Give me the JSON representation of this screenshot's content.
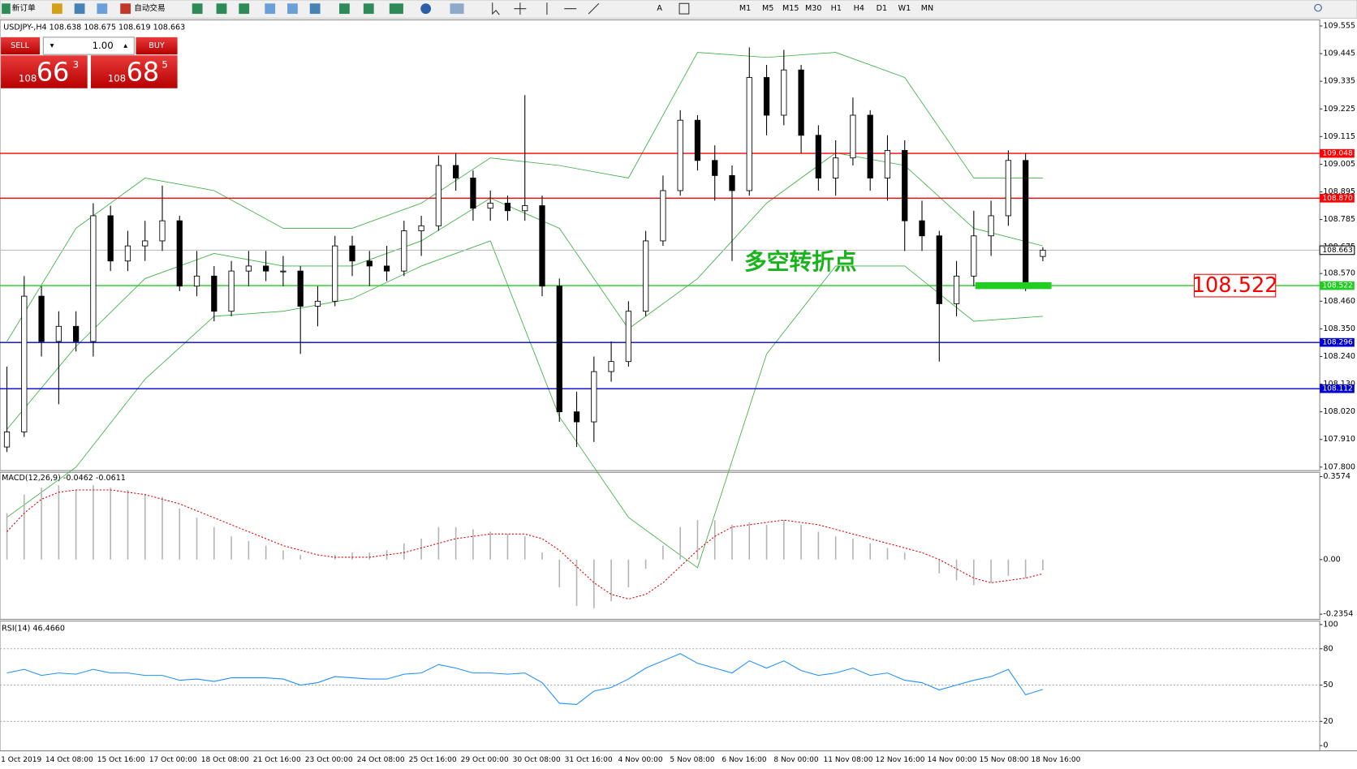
{
  "toolbar": {
    "new_order": "新订单",
    "auto_trading": "自动交易",
    "timeframes": [
      "M1",
      "M5",
      "M15",
      "M30",
      "H1",
      "H4",
      "D1",
      "W1",
      "MN"
    ]
  },
  "trade_panel": {
    "sell": "SELL",
    "buy": "BUY",
    "lots": "1.00",
    "bid": {
      "big": "108",
      "main": "66",
      "small": "3"
    },
    "ask": {
      "big": "108",
      "main": "68",
      "small": "5"
    }
  },
  "chart_data": [
    {
      "type": "candlestick",
      "title": "USDJPY-,H4  108.638 108.675 108.619 108.663",
      "open": [
        107.88,
        107.94,
        108.48,
        108.3,
        108.36,
        108.3,
        108.8,
        108.62,
        108.68,
        108.7,
        108.78,
        108.52,
        108.56,
        108.42,
        108.58,
        108.6,
        108.58,
        108.58,
        108.44,
        108.46,
        108.68,
        108.62,
        108.6,
        108.58,
        108.74,
        108.76,
        109.0,
        108.95,
        108.83,
        108.85,
        108.82,
        108.84,
        108.52,
        108.02,
        107.98,
        108.18,
        108.22,
        108.42,
        108.7,
        108.9,
        109.18,
        109.02,
        108.96,
        108.9,
        109.35,
        109.2,
        109.38,
        109.12,
        108.95,
        109.03,
        109.2,
        108.95,
        109.06,
        108.78,
        108.72,
        108.45,
        108.56,
        108.72,
        108.8,
        109.02,
        108.638
      ],
      "high": [
        108.2,
        108.56,
        108.52,
        108.42,
        108.42,
        108.85,
        108.84,
        108.74,
        108.78,
        108.92,
        108.8,
        108.66,
        108.6,
        108.62,
        108.66,
        108.66,
        108.64,
        108.6,
        108.52,
        108.72,
        108.72,
        108.66,
        108.68,
        108.78,
        108.8,
        109.04,
        109.05,
        108.98,
        108.9,
        108.88,
        109.28,
        108.88,
        108.55,
        108.1,
        108.24,
        108.3,
        108.46,
        108.74,
        108.96,
        109.22,
        109.2,
        109.08,
        109.0,
        109.47,
        109.4,
        109.46,
        109.4,
        109.16,
        109.1,
        109.27,
        109.22,
        109.12,
        109.1,
        108.86,
        108.74,
        108.62,
        108.82,
        108.86,
        109.06,
        109.05,
        108.675
      ],
      "low": [
        107.86,
        107.92,
        108.24,
        108.05,
        108.26,
        108.24,
        108.58,
        108.58,
        108.62,
        108.66,
        108.5,
        108.48,
        108.38,
        108.4,
        108.52,
        108.54,
        108.52,
        108.25,
        108.36,
        108.44,
        108.56,
        108.52,
        108.54,
        108.56,
        108.64,
        108.74,
        108.9,
        108.78,
        108.78,
        108.78,
        108.78,
        108.48,
        107.98,
        107.88,
        107.9,
        108.14,
        108.2,
        108.4,
        108.68,
        108.88,
        108.98,
        108.86,
        108.62,
        108.88,
        109.12,
        109.16,
        109.05,
        108.9,
        108.88,
        109.0,
        108.9,
        108.86,
        108.66,
        108.66,
        108.22,
        108.4,
        108.52,
        108.64,
        108.76,
        108.5,
        108.619
      ],
      "close": [
        107.94,
        108.48,
        108.3,
        108.36,
        108.3,
        108.8,
        108.62,
        108.68,
        108.7,
        108.78,
        108.52,
        108.56,
        108.42,
        108.58,
        108.6,
        108.58,
        108.58,
        108.44,
        108.46,
        108.68,
        108.62,
        108.6,
        108.58,
        108.74,
        108.76,
        109.0,
        108.95,
        108.83,
        108.85,
        108.82,
        108.84,
        108.52,
        108.02,
        107.98,
        108.18,
        108.22,
        108.42,
        108.7,
        108.9,
        109.18,
        109.02,
        108.96,
        108.9,
        109.35,
        109.2,
        109.38,
        109.12,
        108.95,
        109.03,
        109.2,
        108.95,
        109.06,
        108.78,
        108.72,
        108.45,
        108.56,
        108.72,
        108.8,
        109.02,
        108.52,
        108.663
      ],
      "bollinger": {
        "color": "#3cb043",
        "x": [
          0,
          4,
          8,
          12,
          16,
          20,
          24,
          28,
          32,
          36,
          40,
          44,
          48,
          52,
          56,
          60
        ],
        "upper": [
          108.3,
          108.75,
          108.95,
          108.9,
          108.75,
          108.75,
          108.85,
          109.03,
          109.0,
          108.95,
          109.45,
          109.43,
          109.45,
          109.35,
          108.95,
          108.95
        ],
        "middle": [
          107.95,
          108.28,
          108.55,
          108.65,
          108.6,
          108.6,
          108.7,
          108.87,
          108.75,
          108.35,
          108.55,
          108.85,
          109.05,
          109.0,
          108.75,
          108.68
        ],
        "lower": [
          107.6,
          107.8,
          108.15,
          108.4,
          108.42,
          108.47,
          108.6,
          108.7,
          108.0,
          107.6,
          107.4,
          108.25,
          108.6,
          108.6,
          108.38,
          108.4
        ]
      },
      "levels": [
        {
          "value": 109.048,
          "label": "109.048",
          "color": "#ff0000"
        },
        {
          "value": 108.87,
          "label": "108.870",
          "color": "#ff0000"
        },
        {
          "value": 108.522,
          "label": "108.522",
          "color": "#22cc22"
        },
        {
          "value": 108.296,
          "label": "108.296",
          "color": "#0000cc"
        },
        {
          "value": 108.112,
          "label": "108.112",
          "color": "#0000cc"
        }
      ],
      "current_price": {
        "value": 108.663,
        "label": "108.663"
      },
      "annotation": {
        "text": "多空转折点",
        "color": "#19b31c"
      },
      "marker": {
        "value": 108.522,
        "label": "108.522",
        "color": "#ff0000"
      },
      "ylim": [
        107.8,
        109.555
      ],
      "yticks": [
        109.555,
        109.445,
        109.335,
        109.225,
        109.115,
        109.005,
        108.895,
        108.785,
        108.675,
        {
          "value": 108.57,
          "label": "108.570"
        },
        {
          "value": 108.46,
          "label": "108.460"
        },
        {
          "value": 108.35,
          "label": "108.350"
        },
        {
          "value": 108.24,
          "label": "108.240"
        },
        {
          "value": 108.13,
          "label": "108.130"
        },
        {
          "value": 108.02,
          "label": "108.020"
        },
        {
          "value": 107.91,
          "label": "107.910"
        },
        {
          "value": 107.8,
          "label": "107.800"
        }
      ],
      "date_labels": [
        "1 Oct 2019",
        "14 Oct 08:00",
        "15 Oct 16:00",
        "17 Oct 00:00",
        "18 Oct 08:00",
        "21 Oct 16:00",
        "23 Oct 00:00",
        "24 Oct 08:00",
        "25 Oct 16:00",
        "29 Oct 00:00",
        "30 Oct 08:00",
        "31 Oct 16:00",
        "4 Nov 00:00",
        "5 Nov 08:00",
        "6 Nov 16:00",
        "8 Nov 00:00",
        "11 Nov 08:00",
        "12 Nov 16:00",
        "14 Nov 00:00",
        "15 Nov 08:00",
        "18 Nov 16:00"
      ]
    },
    {
      "type": "macd",
      "title": "MACD(12,26,9) -0.0462 -0.0611",
      "histogram": [
        0.2,
        0.28,
        0.31,
        0.32,
        0.3,
        0.32,
        0.31,
        0.3,
        0.28,
        0.27,
        0.22,
        0.18,
        0.14,
        0.1,
        0.08,
        0.06,
        0.04,
        0.02,
        0.0,
        0.02,
        0.03,
        0.03,
        0.04,
        0.07,
        0.09,
        0.14,
        0.14,
        0.13,
        0.12,
        0.11,
        0.1,
        0.03,
        -0.12,
        -0.2,
        -0.21,
        -0.18,
        -0.12,
        -0.04,
        0.06,
        0.14,
        0.17,
        0.17,
        0.15,
        0.16,
        0.15,
        0.17,
        0.15,
        0.12,
        0.1,
        0.09,
        0.07,
        0.05,
        0.03,
        0.0,
        -0.06,
        -0.09,
        -0.11,
        -0.1,
        -0.07,
        -0.08,
        -0.0462
      ],
      "signal": [
        0.12,
        0.2,
        0.26,
        0.29,
        0.3,
        0.3,
        0.3,
        0.29,
        0.28,
        0.26,
        0.24,
        0.21,
        0.18,
        0.15,
        0.12,
        0.09,
        0.06,
        0.04,
        0.02,
        0.01,
        0.01,
        0.01,
        0.02,
        0.03,
        0.05,
        0.07,
        0.09,
        0.1,
        0.11,
        0.11,
        0.11,
        0.09,
        0.04,
        -0.03,
        -0.1,
        -0.15,
        -0.17,
        -0.15,
        -0.1,
        -0.03,
        0.04,
        0.1,
        0.14,
        0.15,
        0.16,
        0.17,
        0.16,
        0.15,
        0.13,
        0.11,
        0.09,
        0.07,
        0.05,
        0.03,
        0.0,
        -0.04,
        -0.08,
        -0.1,
        -0.09,
        -0.08,
        -0.0611
      ],
      "histogram_color": "#b4b4b4",
      "signal_color": "#e00000",
      "ylim": [
        -0.2354,
        0.3574
      ],
      "yticks": [
        0.3574,
        {
          "value": 0,
          "label": "0.00"
        },
        -0.2354
      ]
    },
    {
      "type": "rsi",
      "title": "RSI(14) 46.4660",
      "color": "#1e90ff",
      "values": [
        60,
        63,
        58,
        60,
        59,
        63,
        60,
        60,
        58,
        58,
        54,
        55,
        53,
        56,
        56,
        56,
        55,
        50,
        52,
        57,
        56,
        55,
        55,
        59,
        60,
        67,
        64,
        60,
        60,
        59,
        60,
        52,
        35,
        34,
        45,
        48,
        55,
        64,
        70,
        76,
        68,
        64,
        60,
        70,
        64,
        70,
        62,
        58,
        60,
        64,
        58,
        60,
        54,
        52,
        46,
        50,
        54,
        57,
        63,
        42,
        46.466
      ],
      "ylim": [
        0,
        100
      ],
      "yticks": [
        100,
        80,
        50,
        20,
        0
      ],
      "levels": [
        80,
        50,
        20
      ]
    }
  ]
}
